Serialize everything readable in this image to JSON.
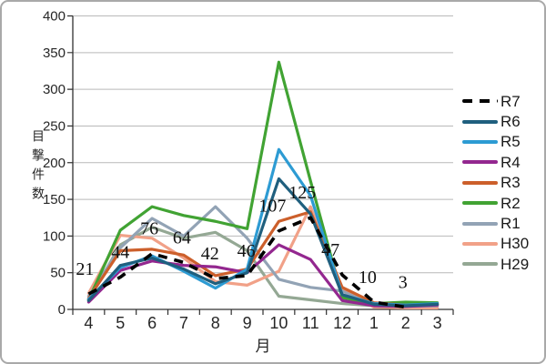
{
  "chart_data": {
    "type": "line",
    "title": "",
    "xlabel": "月",
    "ylabel": "目撃件数",
    "ylim": [
      0,
      400
    ],
    "ytick_step": 50,
    "yticks": [
      0,
      50,
      100,
      150,
      200,
      250,
      300,
      350,
      400
    ],
    "categories": [
      "4",
      "5",
      "6",
      "7",
      "8",
      "9",
      "10",
      "11",
      "12",
      "1",
      "2",
      "3"
    ],
    "grid": true,
    "legend_position": "right",
    "axis_color": "#303030",
    "grid_color": "#b9b9b9",
    "series": [
      {
        "name": "R7",
        "color": "#000000",
        "style": "dashed",
        "values": [
          21,
          44,
          76,
          64,
          42,
          46,
          107,
          125,
          47,
          10,
          3,
          null
        ],
        "data_labels": [
          "21",
          "44",
          "76",
          "64",
          "42",
          "46",
          "107",
          "125",
          "47",
          "10",
          "3"
        ]
      },
      {
        "name": "R6",
        "color": "#1f5f7e",
        "style": "solid",
        "values": [
          12,
          60,
          70,
          55,
          35,
          50,
          178,
          130,
          20,
          7,
          5,
          7
        ]
      },
      {
        "name": "R5",
        "color": "#2d9bd3",
        "style": "solid",
        "values": [
          14,
          57,
          73,
          52,
          29,
          55,
          218,
          155,
          20,
          8,
          6,
          8
        ]
      },
      {
        "name": "R4",
        "color": "#93278f",
        "style": "solid",
        "values": [
          10,
          53,
          66,
          60,
          58,
          50,
          88,
          68,
          12,
          5,
          4,
          6
        ]
      },
      {
        "name": "R3",
        "color": "#cc5f2b",
        "style": "solid",
        "values": [
          15,
          80,
          82,
          74,
          46,
          55,
          120,
          133,
          30,
          9,
          6,
          7
        ]
      },
      {
        "name": "R2",
        "color": "#41a333",
        "style": "solid",
        "values": [
          13,
          108,
          140,
          128,
          120,
          110,
          337,
          175,
          16,
          8,
          10,
          9
        ]
      },
      {
        "name": "R1",
        "color": "#92a3b5",
        "style": "solid",
        "values": [
          18,
          84,
          124,
          100,
          140,
          97,
          41,
          30,
          25,
          5,
          4,
          5
        ]
      },
      {
        "name": "H30",
        "color": "#f1a188",
        "style": "solid",
        "values": [
          22,
          101,
          97,
          70,
          38,
          33,
          52,
          140,
          27,
          3,
          2,
          2
        ]
      },
      {
        "name": "H29",
        "color": "#94a894",
        "style": "solid",
        "values": [
          13,
          88,
          112,
          97,
          105,
          80,
          18,
          13,
          8,
          5,
          6,
          6
        ]
      }
    ]
  }
}
